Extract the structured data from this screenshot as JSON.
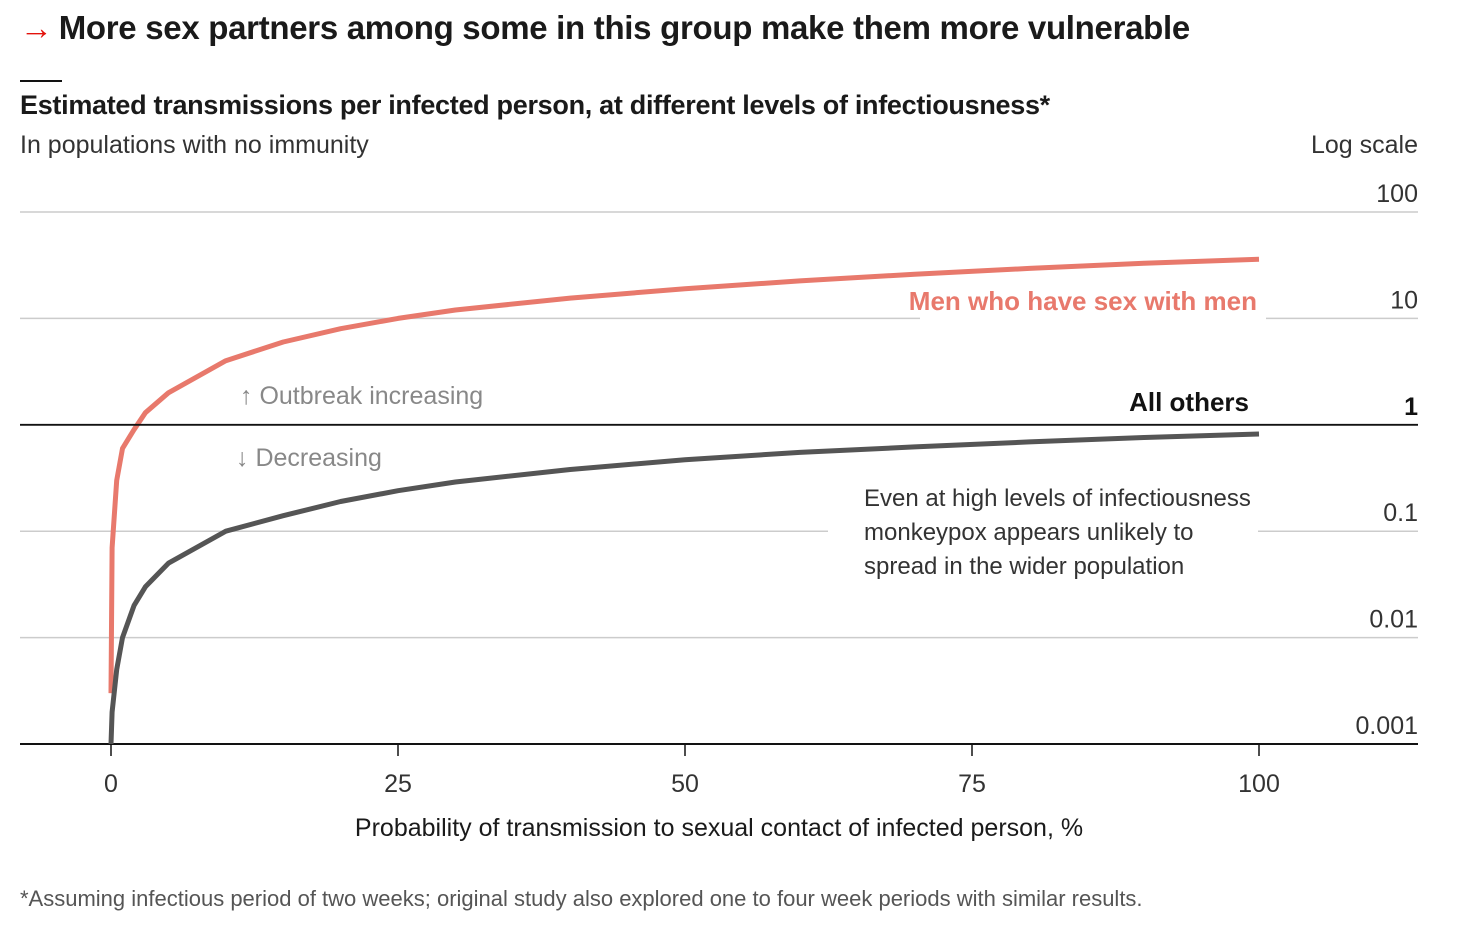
{
  "headline": {
    "arrow": "→",
    "text": "More sex partners among some in this group make them more vulnerable"
  },
  "chart_title": "Estimated transmissions per infected person, at different levels of infectiousness*",
  "chart_subtitle": "In populations with no immunity",
  "scale_note": "Log scale",
  "footnote": "*Assuming infectious period of two weeks; original study also explored one to four week periods with similar results.",
  "colors": {
    "msm": "#e8796c",
    "others": "#555555",
    "threshold": "#121212",
    "grid": "#cccccc",
    "muted_text": "#888888",
    "accent": "#e3120b"
  },
  "chart_data": {
    "type": "line",
    "title": "Estimated transmissions per infected person, at different levels of infectiousness*",
    "subtitle": "In populations with no immunity",
    "xlabel": "Probability of transmission to sexual contact of infected person, %",
    "ylabel": "",
    "xlim": [
      0,
      100
    ],
    "ylim": [
      0.001,
      100
    ],
    "yscale": "log",
    "grid": true,
    "x_ticks": [
      0,
      25,
      50,
      75,
      100
    ],
    "x_tick_labels": [
      "0",
      "25",
      "50",
      "75",
      "100"
    ],
    "y_ticks": [
      100,
      10,
      1,
      0.1,
      0.01,
      0.001
    ],
    "y_tick_labels": [
      "100",
      "10",
      "1",
      "0.1",
      "0.01",
      "0.001"
    ],
    "threshold": 1,
    "series": [
      {
        "name": "Men who have sex with men",
        "color": "#e8796c",
        "points": [
          [
            0,
            0.003
          ],
          [
            0.1,
            0.07
          ],
          [
            0.5,
            0.3
          ],
          [
            1,
            0.6
          ],
          [
            2,
            0.9
          ],
          [
            3,
            1.3
          ],
          [
            5,
            2.0
          ],
          [
            10,
            4.0
          ],
          [
            15,
            6.0
          ],
          [
            20,
            8.0
          ],
          [
            25,
            10.0
          ],
          [
            30,
            12.0
          ],
          [
            40,
            15.5
          ],
          [
            50,
            19.0
          ],
          [
            60,
            22.5
          ],
          [
            70,
            26.0
          ],
          [
            80,
            29.5
          ],
          [
            90,
            33.0
          ],
          [
            100,
            36.0
          ]
        ]
      },
      {
        "name": "All others",
        "color": "#555555",
        "points": [
          [
            0,
            0.001
          ],
          [
            0.1,
            0.002
          ],
          [
            0.5,
            0.005
          ],
          [
            1,
            0.01
          ],
          [
            2,
            0.02
          ],
          [
            3,
            0.03
          ],
          [
            5,
            0.05
          ],
          [
            10,
            0.1
          ],
          [
            15,
            0.14
          ],
          [
            20,
            0.19
          ],
          [
            25,
            0.24
          ],
          [
            30,
            0.29
          ],
          [
            40,
            0.38
          ],
          [
            50,
            0.47
          ],
          [
            60,
            0.55
          ],
          [
            70,
            0.62
          ],
          [
            80,
            0.69
          ],
          [
            90,
            0.76
          ],
          [
            100,
            0.82
          ]
        ]
      }
    ],
    "annotations": {
      "increasing": "↑ Outbreak increasing",
      "decreasing": "↓ Decreasing",
      "note_lines": [
        "Even at high levels of infectiousness",
        "monkeypox appears unlikely to",
        "spread in the wider population"
      ]
    }
  }
}
